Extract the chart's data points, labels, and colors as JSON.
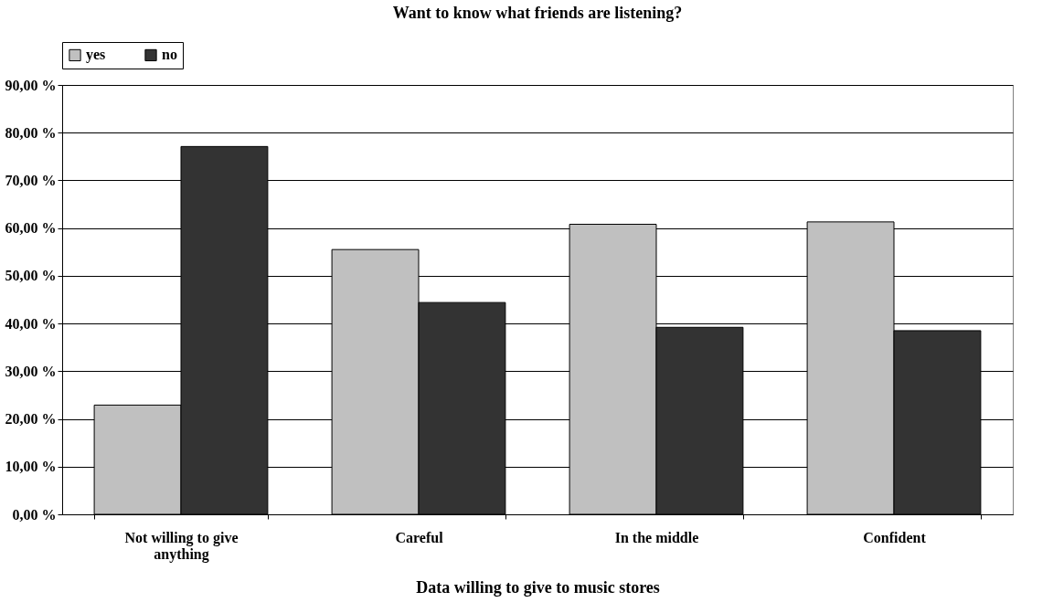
{
  "chart_data": {
    "type": "bar",
    "title": "Want to know what friends are listening?",
    "xlabel": "Data willing to give to music stores",
    "categories": [
      "Not willing to give anything",
      "Careful",
      "In the middle",
      "Confident"
    ],
    "series": [
      {
        "name": "yes",
        "color": "#c0c0c0",
        "values": [
          22.9,
          55.5,
          60.8,
          61.3
        ]
      },
      {
        "name": "no",
        "color": "#333333",
        "values": [
          77.1,
          44.4,
          39.2,
          38.5
        ]
      }
    ],
    "ylim": [
      0,
      90
    ],
    "yticks": [
      {
        "value": 0,
        "label": "0,00 %"
      },
      {
        "value": 10,
        "label": "10,00 %"
      },
      {
        "value": 20,
        "label": "20,00 %"
      },
      {
        "value": 30,
        "label": "30,00 %"
      },
      {
        "value": 40,
        "label": "40,00 %"
      },
      {
        "value": 50,
        "label": "50,00 %"
      },
      {
        "value": 60,
        "label": "60,00 %"
      },
      {
        "value": 70,
        "label": "70,00 %"
      },
      {
        "value": 80,
        "label": "80,00 %"
      },
      {
        "value": 90,
        "label": "90,00 %"
      }
    ],
    "grid": "y",
    "legend": "top"
  }
}
